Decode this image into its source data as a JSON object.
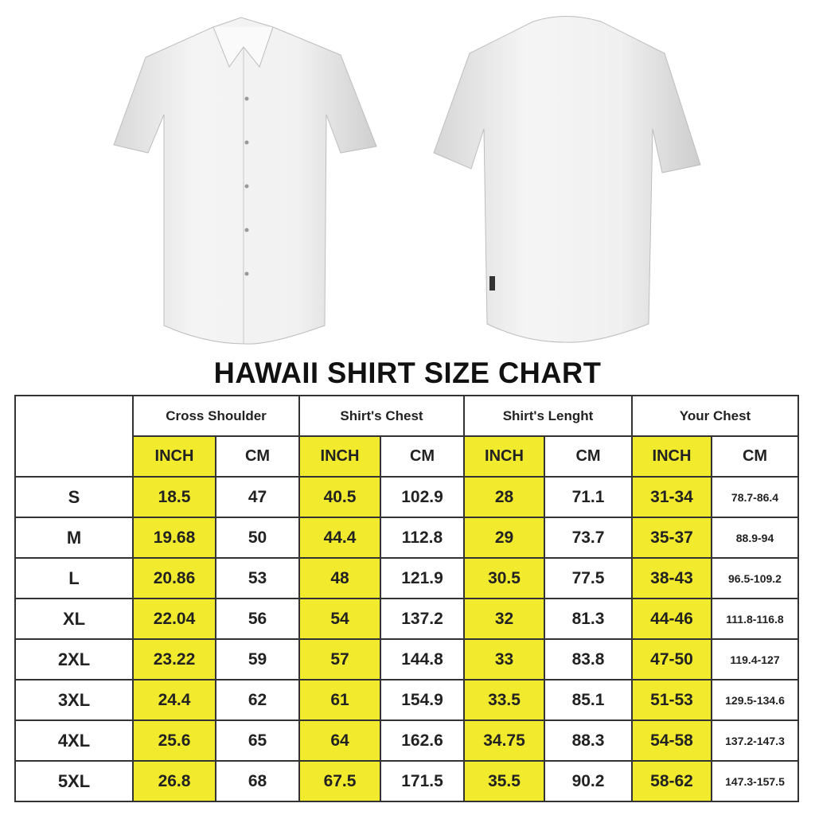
{
  "images": {
    "front": "white short-sleeve shirt front view",
    "back": "white short-sleeve shirt back view"
  },
  "title": "HAWAII SHIRT SIZE CHART",
  "colors": {
    "highlight": "#f2ea2c",
    "border": "#333333"
  },
  "table": {
    "groups": [
      "Cross Shoulder",
      "Shirt's Chest",
      "Shirt's Lenght",
      "Your Chest"
    ],
    "units": [
      "INCH",
      "CM"
    ],
    "rows": [
      {
        "size": "S",
        "values": [
          "18.5",
          "47",
          "40.5",
          "102.9",
          "28",
          "71.1",
          "31-34",
          "78.7-86.4"
        ]
      },
      {
        "size": "M",
        "values": [
          "19.68",
          "50",
          "44.4",
          "112.8",
          "29",
          "73.7",
          "35-37",
          "88.9-94"
        ]
      },
      {
        "size": "L",
        "values": [
          "20.86",
          "53",
          "48",
          "121.9",
          "30.5",
          "77.5",
          "38-43",
          "96.5-109.2"
        ]
      },
      {
        "size": "XL",
        "values": [
          "22.04",
          "56",
          "54",
          "137.2",
          "32",
          "81.3",
          "44-46",
          "111.8-116.8"
        ]
      },
      {
        "size": "2XL",
        "values": [
          "23.22",
          "59",
          "57",
          "144.8",
          "33",
          "83.8",
          "47-50",
          "119.4-127"
        ]
      },
      {
        "size": "3XL",
        "values": [
          "24.4",
          "62",
          "61",
          "154.9",
          "33.5",
          "85.1",
          "51-53",
          "129.5-134.6"
        ]
      },
      {
        "size": "4XL",
        "values": [
          "25.6",
          "65",
          "64",
          "162.6",
          "34.75",
          "88.3",
          "54-58",
          "137.2-147.3"
        ]
      },
      {
        "size": "5XL",
        "values": [
          "26.8",
          "68",
          "67.5",
          "171.5",
          "35.5",
          "90.2",
          "58-62",
          "147.3-157.5"
        ]
      }
    ]
  }
}
